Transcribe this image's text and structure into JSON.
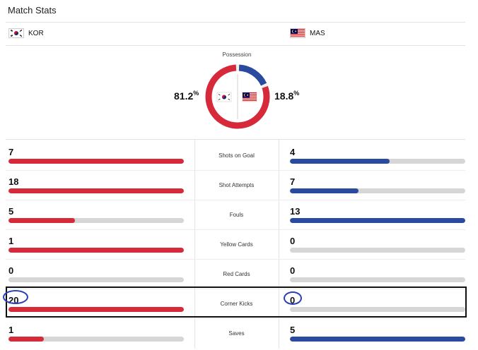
{
  "title": "Match Stats",
  "home": {
    "code": "KOR",
    "flag": "south-korea-flag"
  },
  "away": {
    "code": "MAS",
    "flag": "malaysia-flag"
  },
  "possession": {
    "label": "Possession",
    "home_value": "81.2",
    "away_value": "18.8",
    "unit": "%",
    "home_fraction": 0.812,
    "away_fraction": 0.188
  },
  "colors": {
    "home": "#d62a3a",
    "away": "#2a4a9e",
    "track": "#d6d6d6",
    "annotation": "#2a3fb8"
  },
  "stats": [
    {
      "label": "Shots on Goal",
      "home": "7",
      "away": "4",
      "home_fill": 1.0,
      "away_fill": 0.57
    },
    {
      "label": "Shot Attempts",
      "home": "18",
      "away": "7",
      "home_fill": 1.0,
      "away_fill": 0.39
    },
    {
      "label": "Fouls",
      "home": "5",
      "away": "13",
      "home_fill": 0.38,
      "away_fill": 1.0
    },
    {
      "label": "Yellow Cards",
      "home": "1",
      "away": "0",
      "home_fill": 1.0,
      "away_fill": 0.0
    },
    {
      "label": "Red Cards",
      "home": "0",
      "away": "0",
      "home_fill": 0.0,
      "away_fill": 0.0
    },
    {
      "label": "Corner Kicks",
      "home": "20",
      "away": "0",
      "home_fill": 1.0,
      "away_fill": 0.0
    },
    {
      "label": "Saves",
      "home": "1",
      "away": "5",
      "home_fill": 0.2,
      "away_fill": 1.0
    }
  ]
}
